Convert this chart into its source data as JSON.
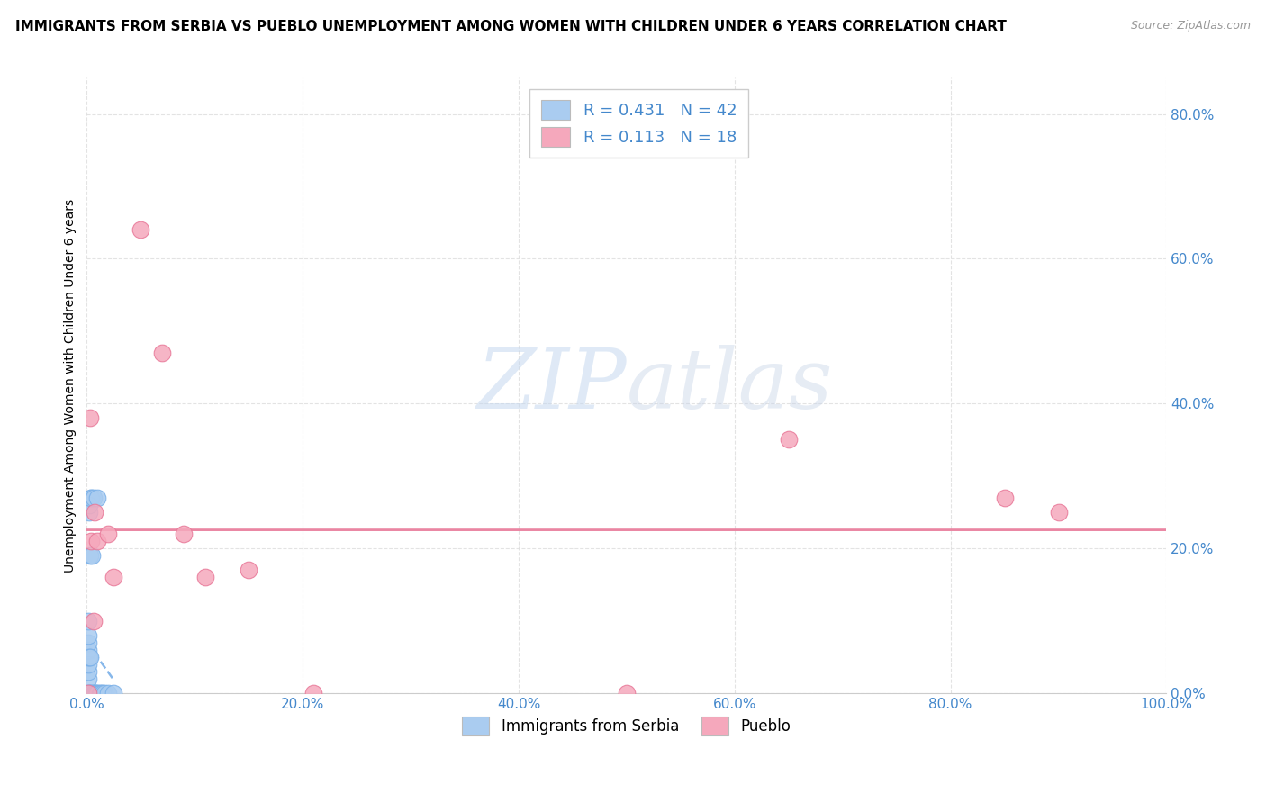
{
  "title": "IMMIGRANTS FROM SERBIA VS PUEBLO UNEMPLOYMENT AMONG WOMEN WITH CHILDREN UNDER 6 YEARS CORRELATION CHART",
  "source": "Source: ZipAtlas.com",
  "ylabel": "Unemployment Among Women with Children Under 6 years",
  "R1": 0.431,
  "N1": 42,
  "R2": 0.113,
  "N2": 18,
  "color1": "#aaccf0",
  "color2": "#f5a8bc",
  "color1_line": "#7ab0e8",
  "color2_line": "#e87898",
  "legend_label1": "Immigrants from Serbia",
  "legend_label2": "Pueblo",
  "watermark_zip": "ZIP",
  "watermark_atlas": "atlas",
  "background_color": "#ffffff",
  "grid_color": "#dddddd",
  "blue_x": [
    0.001,
    0.001,
    0.001,
    0.001,
    0.001,
    0.001,
    0.001,
    0.001,
    0.001,
    0.001,
    0.001,
    0.001,
    0.001,
    0.001,
    0.001,
    0.001,
    0.001,
    0.001,
    0.002,
    0.002,
    0.002,
    0.002,
    0.003,
    0.003,
    0.003,
    0.004,
    0.004,
    0.005,
    0.005,
    0.006,
    0.006,
    0.007,
    0.008,
    0.009,
    0.01,
    0.01,
    0.012,
    0.013,
    0.015,
    0.016,
    0.02,
    0.025
  ],
  "blue_y": [
    0.0,
    0.0,
    0.0,
    0.0,
    0.0,
    0.0,
    0.0,
    0.0,
    0.0,
    0.0,
    0.02,
    0.03,
    0.04,
    0.05,
    0.06,
    0.07,
    0.08,
    0.1,
    0.0,
    0.05,
    0.25,
    0.26,
    0.0,
    0.05,
    0.19,
    0.27,
    0.27,
    0.0,
    0.19,
    0.0,
    0.27,
    0.0,
    0.0,
    0.0,
    0.0,
    0.27,
    0.0,
    0.0,
    0.0,
    0.0,
    0.0,
    0.0
  ],
  "pink_x": [
    0.001,
    0.003,
    0.004,
    0.006,
    0.007,
    0.01,
    0.02,
    0.025,
    0.05,
    0.07,
    0.09,
    0.11,
    0.15,
    0.21,
    0.5,
    0.65,
    0.85,
    0.9
  ],
  "pink_y": [
    0.0,
    0.38,
    0.21,
    0.1,
    0.25,
    0.21,
    0.22,
    0.16,
    0.64,
    0.47,
    0.22,
    0.16,
    0.17,
    0.0,
    0.0,
    0.35,
    0.27,
    0.25
  ],
  "xlim": [
    0.0,
    1.0
  ],
  "ylim": [
    0.0,
    0.85
  ],
  "xtick_vals": [
    0.0,
    0.2,
    0.4,
    0.6,
    0.8,
    1.0
  ],
  "xtick_labels": [
    "0.0%",
    "20.0%",
    "40.0%",
    "60.0%",
    "80.0%",
    "100.0%"
  ],
  "ytick_vals": [
    0.0,
    0.2,
    0.4,
    0.6,
    0.8
  ],
  "ytick_labels": [
    "0.0%",
    "20.0%",
    "40.0%",
    "60.0%",
    "80.0%"
  ],
  "tick_color": "#4488cc",
  "title_fontsize": 11,
  "source_fontsize": 9,
  "axis_label_fontsize": 10,
  "tick_fontsize": 11,
  "legend_fontsize": 13
}
